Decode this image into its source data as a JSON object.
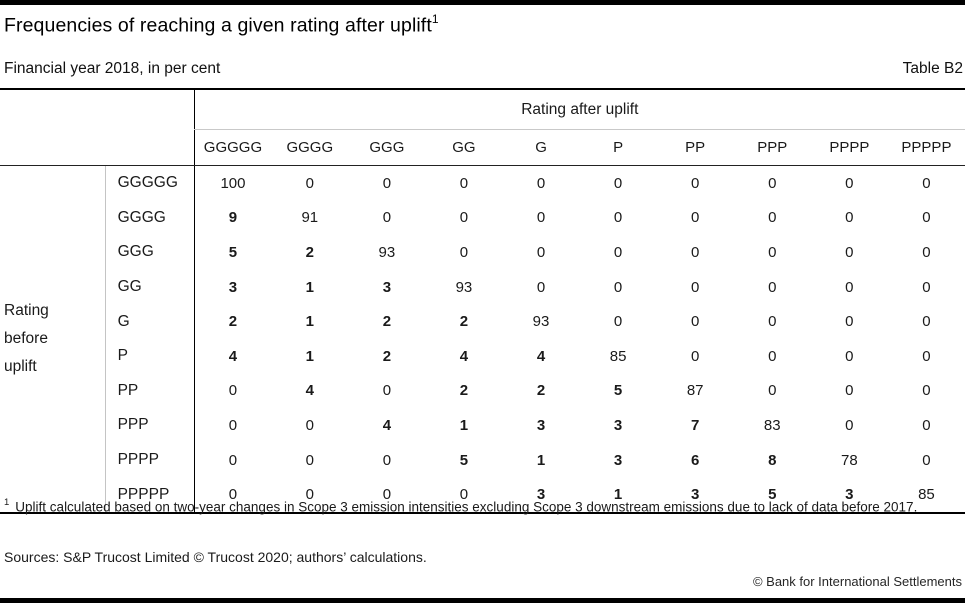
{
  "page": {
    "title": "Frequencies of reaching a given rating after uplift",
    "title_sup": "1",
    "subtitle": "Financial year 2018, in per cent",
    "table_label": "Table B2"
  },
  "table": {
    "col_group_header": "Rating after uplift",
    "row_group_header": "Rating before uplift",
    "row_group_header_lines": [
      "Rating",
      "before",
      "uplift"
    ],
    "columns": [
      "GGGGG",
      "GGGG",
      "GGG",
      "GG",
      "G",
      "P",
      "PP",
      "PPP",
      "PPPP",
      "PPPPP"
    ],
    "rows": [
      "GGGGG",
      "GGGG",
      "GGG",
      "GG",
      "G",
      "P",
      "PP",
      "PPP",
      "PPPP",
      "PPPPP"
    ],
    "values": [
      [
        100,
        0,
        0,
        0,
        0,
        0,
        0,
        0,
        0,
        0
      ],
      [
        9,
        91,
        0,
        0,
        0,
        0,
        0,
        0,
        0,
        0
      ],
      [
        5,
        2,
        93,
        0,
        0,
        0,
        0,
        0,
        0,
        0
      ],
      [
        3,
        1,
        3,
        93,
        0,
        0,
        0,
        0,
        0,
        0
      ],
      [
        2,
        1,
        2,
        2,
        93,
        0,
        0,
        0,
        0,
        0
      ],
      [
        4,
        1,
        2,
        4,
        4,
        85,
        0,
        0,
        0,
        0
      ],
      [
        0,
        4,
        0,
        2,
        2,
        5,
        87,
        0,
        0,
        0
      ],
      [
        0,
        0,
        4,
        1,
        3,
        3,
        7,
        83,
        0,
        0
      ],
      [
        0,
        0,
        0,
        5,
        1,
        3,
        6,
        8,
        78,
        0
      ],
      [
        0,
        0,
        0,
        0,
        3,
        1,
        3,
        5,
        3,
        85
      ]
    ],
    "bold": [
      [
        false,
        false,
        false,
        false,
        false,
        false,
        false,
        false,
        false,
        false
      ],
      [
        true,
        false,
        false,
        false,
        false,
        false,
        false,
        false,
        false,
        false
      ],
      [
        true,
        true,
        false,
        false,
        false,
        false,
        false,
        false,
        false,
        false
      ],
      [
        true,
        true,
        true,
        false,
        false,
        false,
        false,
        false,
        false,
        false
      ],
      [
        true,
        true,
        true,
        true,
        false,
        false,
        false,
        false,
        false,
        false
      ],
      [
        true,
        true,
        true,
        true,
        true,
        false,
        false,
        false,
        false,
        false
      ],
      [
        false,
        true,
        false,
        true,
        true,
        true,
        false,
        false,
        false,
        false
      ],
      [
        false,
        false,
        true,
        true,
        true,
        true,
        true,
        false,
        false,
        false
      ],
      [
        false,
        false,
        false,
        true,
        true,
        true,
        true,
        true,
        false,
        false
      ],
      [
        false,
        false,
        false,
        false,
        true,
        true,
        true,
        true,
        true,
        false
      ]
    ]
  },
  "footnote": {
    "marker": "1",
    "text": "Uplift calculated based on two-year changes in Scope 3 emission intensities excluding Scope 3 downstream emissions due to lack of data before 2017."
  },
  "sources": {
    "text": "Sources: S&P Trucost Limited © Trucost 2020; authors’ calculations."
  },
  "footer": {
    "copyright": "© Bank for International Settlements"
  }
}
